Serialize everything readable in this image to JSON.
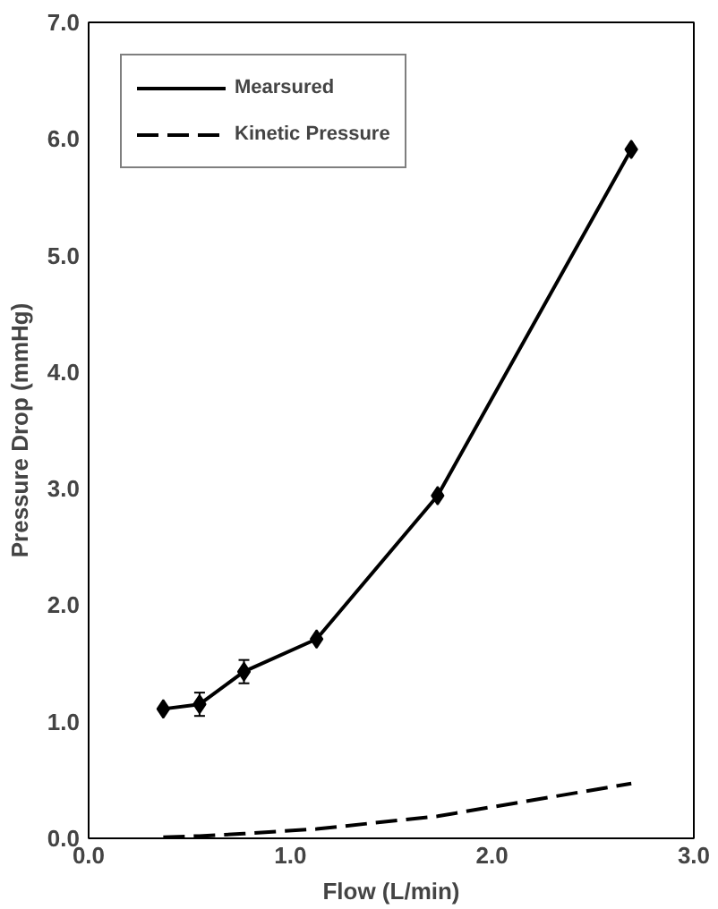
{
  "chart_data": {
    "type": "line",
    "xlabel": "Flow (L/min)",
    "ylabel": "Pressure Drop (mmHg)",
    "x": [
      0.37,
      0.55,
      0.77,
      1.13,
      1.73,
      2.69
    ],
    "series": [
      {
        "name": "Mearsured",
        "color": "#000000",
        "values": [
          1.11,
          1.15,
          1.43,
          1.71,
          2.94,
          5.91
        ],
        "errors": [
          null,
          0.1,
          0.1,
          null,
          null,
          null
        ],
        "marker": "diamond",
        "line_style": "solid"
      },
      {
        "name": "Kinetic Pressure",
        "color": "#000000",
        "values": [
          0.01,
          0.02,
          0.04,
          0.08,
          0.19,
          0.47
        ],
        "marker": "none",
        "line_style": "dashed"
      }
    ],
    "xlim": [
      0,
      3
    ],
    "ylim": [
      0,
      7
    ],
    "xticks": [
      {
        "value": 0,
        "label": "0.0"
      },
      {
        "value": 1,
        "label": "1.0"
      },
      {
        "value": 2,
        "label": "2.0"
      },
      {
        "value": 3,
        "label": "3.0"
      }
    ],
    "yticks": [
      {
        "value": 0,
        "label": "0.0"
      },
      {
        "value": 1,
        "label": "1.0"
      },
      {
        "value": 2,
        "label": "2.0"
      },
      {
        "value": 3,
        "label": "3.0"
      },
      {
        "value": 4,
        "label": "4.0"
      },
      {
        "value": 5,
        "label": "5.0"
      },
      {
        "value": 6,
        "label": "6.0"
      },
      {
        "value": 7,
        "label": "7.0"
      }
    ],
    "grid": false,
    "legend": "top left"
  }
}
